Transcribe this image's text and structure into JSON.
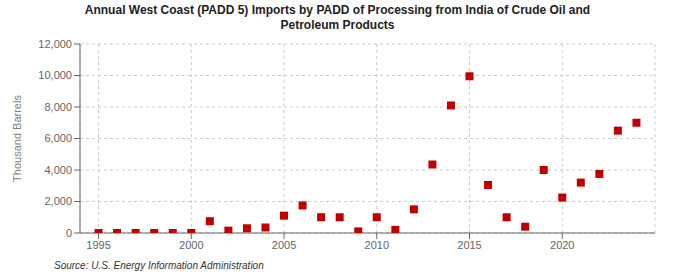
{
  "chart_data": {
    "type": "scatter",
    "title": "Annual West Coast (PADD 5) Imports by PADD of Processing from India of Crude Oil and\nPetroleum Products",
    "ylabel": "Thousand Barrels",
    "source": "Source: U.S. Energy Information Administration",
    "x": [
      1995,
      1996,
      1997,
      1998,
      1999,
      2000,
      2001,
      2002,
      2003,
      2004,
      2005,
      2006,
      2007,
      2008,
      2009,
      2010,
      2011,
      2012,
      2013,
      2014,
      2015,
      2016,
      2017,
      2018,
      2019,
      2020,
      2021,
      2022,
      2023,
      2024
    ],
    "values": [
      0,
      0,
      0,
      0,
      0,
      0,
      750,
      150,
      300,
      350,
      1100,
      1750,
      1000,
      1000,
      100,
      1000,
      200,
      1500,
      4350,
      8100,
      9950,
      3050,
      1000,
      400,
      4000,
      2250,
      3200,
      3750,
      6500,
      7000
    ],
    "color": "#c00000",
    "marker": "square",
    "xlim": [
      1994,
      2025
    ],
    "xticks": [
      1995,
      2000,
      2005,
      2010,
      2015,
      2020
    ],
    "ylim": [
      0,
      12000
    ],
    "yticks": [
      0,
      {
        "value": 2000,
        "label": "2,000"
      },
      {
        "value": 4000,
        "label": "4,000"
      },
      {
        "value": 6000,
        "label": "6,000"
      },
      {
        "value": 8000,
        "label": "8,000"
      },
      {
        "value": 10000,
        "label": "10,000"
      },
      {
        "value": 12000,
        "label": "12,000"
      }
    ],
    "grid": true
  }
}
